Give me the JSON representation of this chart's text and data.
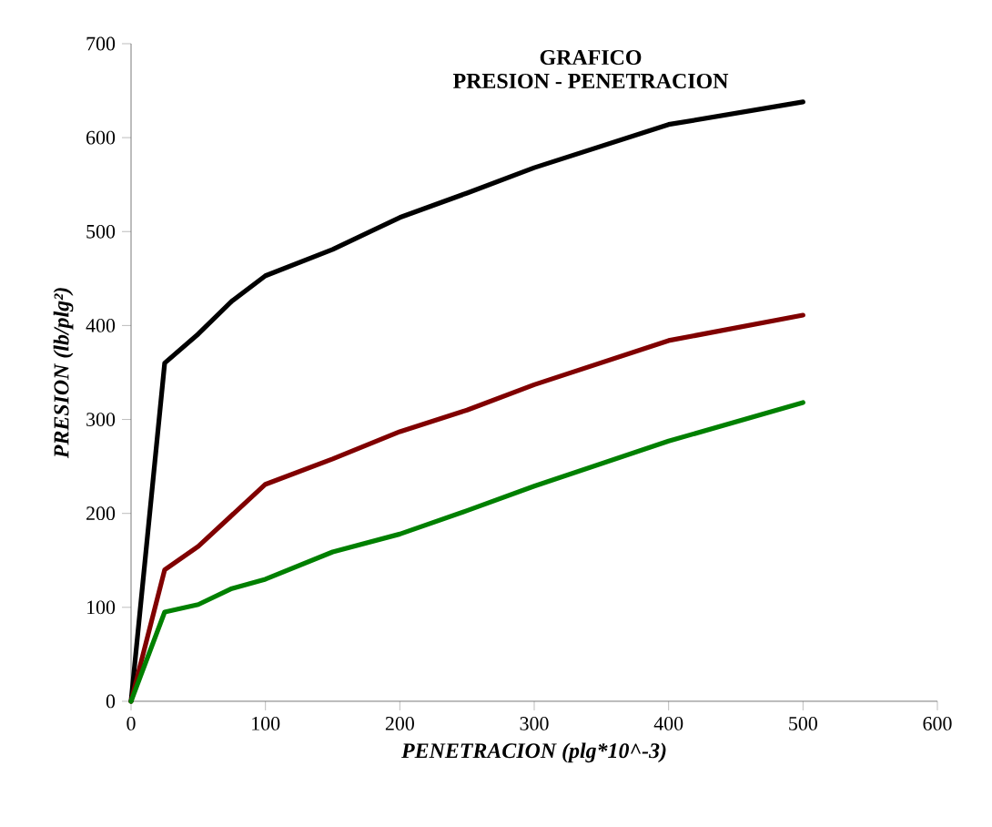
{
  "chart_data": {
    "type": "line",
    "title": "GRAFICO",
    "subtitle": "PRESION - PENETRACION",
    "xlabel": "PENETRACION (plg*10^-3)",
    "ylabel": "PRESION (lb/plg²)",
    "xlim": [
      0,
      600
    ],
    "ylim": [
      0,
      700
    ],
    "xticks": [
      0,
      100,
      200,
      300,
      400,
      500,
      600
    ],
    "yticks": [
      0,
      100,
      200,
      300,
      400,
      500,
      600,
      700
    ],
    "grid": false,
    "marker": "none",
    "line_style": "solid",
    "series": [
      {
        "color": "#000000",
        "x": [
          0,
          25,
          50,
          75,
          100,
          150,
          200,
          250,
          300,
          400,
          500
        ],
        "values": [
          0,
          360,
          391,
          426,
          453,
          481,
          515,
          541,
          568,
          614,
          638
        ]
      },
      {
        "color": "#800000",
        "x": [
          0,
          25,
          50,
          75,
          100,
          150,
          200,
          250,
          300,
          400,
          500
        ],
        "values": [
          0,
          140,
          165,
          198,
          231,
          258,
          287,
          310,
          337,
          384,
          411
        ]
      },
      {
        "color": "#008000",
        "x": [
          0,
          25,
          50,
          75,
          100,
          150,
          200,
          250,
          300,
          400,
          500
        ],
        "values": [
          0,
          95,
          103,
          120,
          130,
          159,
          178,
          203,
          229,
          277,
          318
        ]
      }
    ]
  }
}
